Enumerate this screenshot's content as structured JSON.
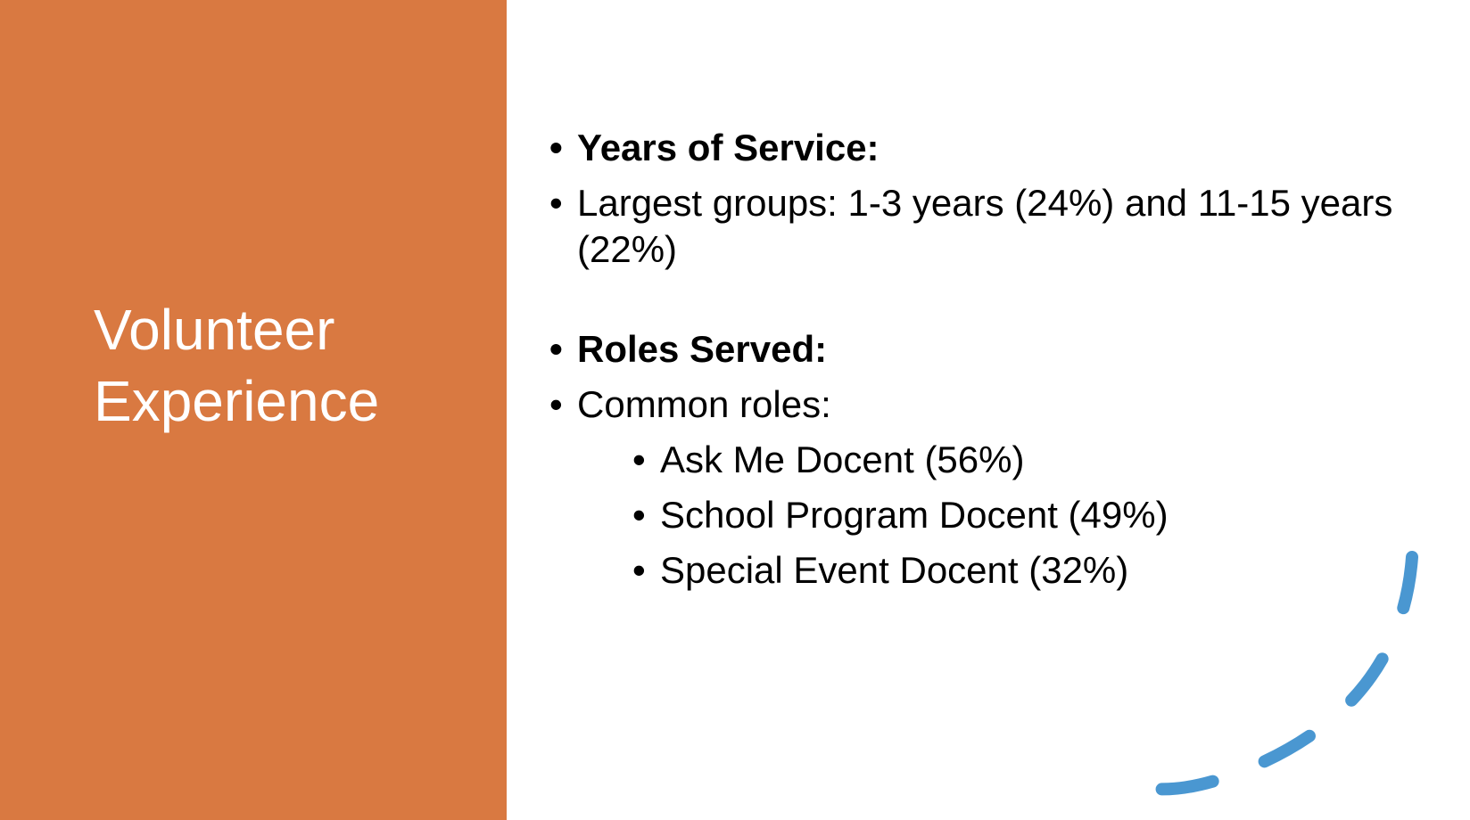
{
  "slide": {
    "title_line1": "Volunteer",
    "title_line2": "Experience",
    "colors": {
      "left_panel": "#D97941",
      "title_text": "#FFFFFF",
      "decoration": "#4A97D1"
    },
    "decoration_icon": "dashed-arc-decoration",
    "bullet_glyph": "•",
    "sections": {
      "years": {
        "heading": "Years of Service:",
        "item": "Largest groups: 1-3 years (24%) and 11-15 years (22%)"
      },
      "roles": {
        "heading": "Roles Served:",
        "item": "Common roles:",
        "subitems": [
          "Ask Me Docent (56%)",
          "School Program Docent (49%)",
          "Special Event Docent (32%)"
        ]
      }
    }
  }
}
